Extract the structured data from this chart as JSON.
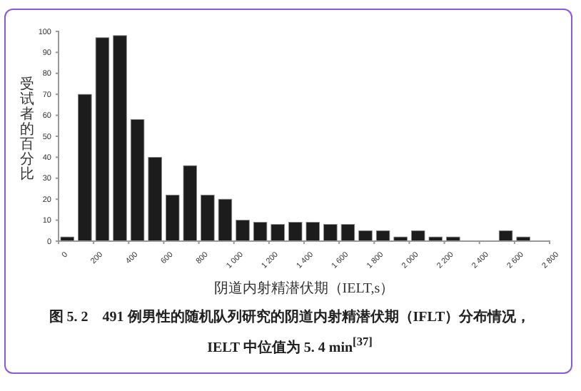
{
  "chart_data": {
    "type": "histogram",
    "title": "图 5. 2　491 例男性的随机队列研究的阴道内射精潜伏期（IFLT）分布情况，IELT 中位值为 5. 4 min$^{[37]}$",
    "xlabel": "阴道内射精潜伏期（IELT,s）",
    "ylabel": "受试者的百分比",
    "bins": [
      0,
      100,
      200,
      300,
      400,
      500,
      600,
      700,
      800,
      900,
      1000,
      1100,
      1200,
      1300,
      1400,
      1500,
      1600,
      1700,
      1800,
      1900,
      2000,
      2100,
      2200,
      2300,
      2400,
      2500,
      2600,
      2700,
      2800
    ],
    "values": [
      2,
      70,
      97,
      98,
      58,
      40,
      22,
      36,
      22,
      20,
      10,
      9,
      8,
      9,
      9,
      8,
      8,
      5,
      5,
      2,
      5,
      2,
      2,
      0,
      0,
      5,
      2,
      0
    ],
    "color": "#1c1c1c",
    "xlim": [
      0,
      2800
    ],
    "xticks": [
      0,
      200,
      400,
      600,
      800,
      {
        "value": 1000,
        "label": "1 000"
      },
      {
        "value": 1200,
        "label": "1 200"
      },
      {
        "value": 1400,
        "label": "1 400"
      },
      {
        "value": 1600,
        "label": "1 600"
      },
      {
        "value": 1800,
        "label": "1 800"
      },
      {
        "value": 2000,
        "label": "2 000"
      },
      {
        "value": 2200,
        "label": "2 200"
      },
      {
        "value": 2400,
        "label": "2 400"
      },
      {
        "value": 2600,
        "label": "2 600"
      },
      {
        "value": 2800,
        "label": "2 800"
      }
    ],
    "ylim": [
      0,
      100
    ],
    "yticks": [
      0,
      10,
      20,
      30,
      40,
      50,
      60,
      70,
      80,
      90,
      100
    ]
  }
}
